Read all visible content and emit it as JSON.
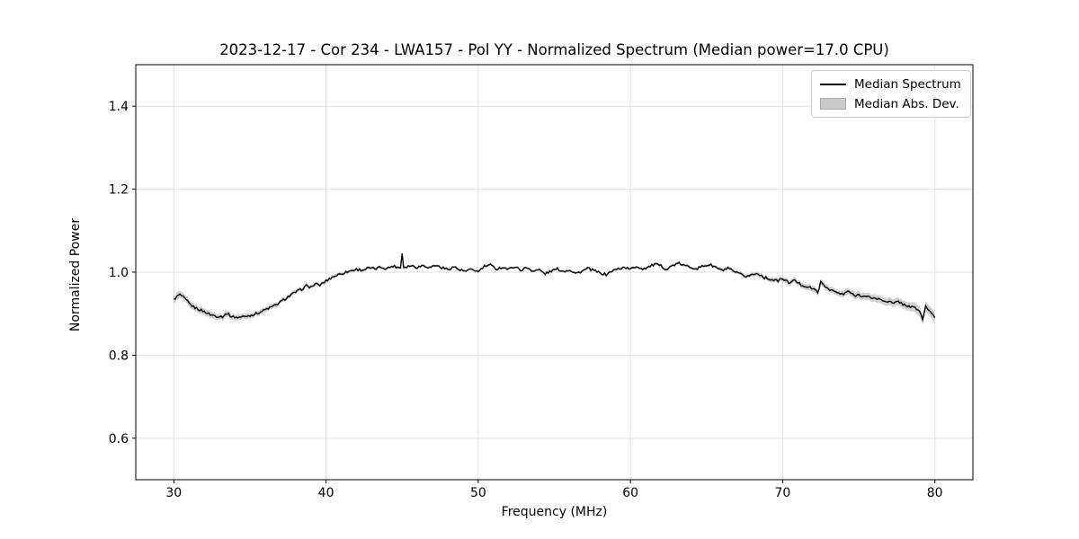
{
  "figure": {
    "title": "2023-12-17 - Cor 234 - LWA157 - Pol YY - Normalized Spectrum (Median power=17.0 CPU)"
  },
  "legend": {
    "items": [
      {
        "label": "Median Spectrum",
        "swatch": "line",
        "color": "#000000"
      },
      {
        "label": "Median Abs. Dev.",
        "swatch": "patch",
        "color": "#c9c9c9"
      }
    ]
  },
  "chart_data": {
    "type": "line",
    "title": "2023-12-17 - Cor 234 - LWA157 - Pol YY - Normalized Spectrum (Median power=17.0 CPU)",
    "xlabel": "Frequency (MHz)",
    "ylabel": "Normalized Power",
    "xlim": [
      27.5,
      82.5
    ],
    "ylim": [
      0.5,
      1.5
    ],
    "xticks": [
      30,
      40,
      50,
      60,
      70,
      80
    ],
    "yticks": [
      0.6,
      0.8,
      1.0,
      1.2,
      1.4
    ],
    "grid": true,
    "grid_color": "#e2e2e2",
    "axis_color": "#000000",
    "legend_position": "upper right",
    "noise_amplitude": 0.003,
    "sample_step_mhz": 0.1,
    "series": [
      {
        "name": "Median Spectrum",
        "render": "line",
        "color": "#000000",
        "points": [
          [
            30.0,
            0.934
          ],
          [
            30.2,
            0.941
          ],
          [
            30.4,
            0.946
          ],
          [
            30.6,
            0.94
          ],
          [
            30.8,
            0.933
          ],
          [
            31.0,
            0.925
          ],
          [
            31.3,
            0.916
          ],
          [
            31.6,
            0.911
          ],
          [
            32.0,
            0.905
          ],
          [
            32.4,
            0.898
          ],
          [
            32.8,
            0.894
          ],
          [
            33.2,
            0.893
          ],
          [
            33.5,
            0.901
          ],
          [
            33.8,
            0.893
          ],
          [
            34.2,
            0.891
          ],
          [
            34.6,
            0.893
          ],
          [
            35.0,
            0.896
          ],
          [
            35.4,
            0.9
          ],
          [
            35.8,
            0.906
          ],
          [
            36.2,
            0.913
          ],
          [
            36.5,
            0.917
          ],
          [
            36.8,
            0.923
          ],
          [
            37.2,
            0.933
          ],
          [
            37.6,
            0.943
          ],
          [
            38.0,
            0.952
          ],
          [
            38.4,
            0.959
          ],
          [
            38.7,
            0.967
          ],
          [
            39.0,
            0.964
          ],
          [
            39.3,
            0.971
          ],
          [
            39.6,
            0.969
          ],
          [
            40.0,
            0.979
          ],
          [
            40.4,
            0.988
          ],
          [
            40.8,
            0.994
          ],
          [
            41.2,
            0.999
          ],
          [
            41.6,
            1.003
          ],
          [
            42.0,
            1.007
          ],
          [
            42.4,
            1.005
          ],
          [
            42.8,
            1.01
          ],
          [
            43.2,
            1.008
          ],
          [
            43.6,
            1.012
          ],
          [
            44.0,
            1.009
          ],
          [
            44.4,
            1.015
          ],
          [
            44.8,
            1.011
          ],
          [
            44.9,
            1.012
          ],
          [
            45.0,
            1.046
          ],
          [
            45.1,
            1.012
          ],
          [
            45.6,
            1.016
          ],
          [
            46.0,
            1.012
          ],
          [
            46.4,
            1.017
          ],
          [
            46.8,
            1.011
          ],
          [
            47.2,
            1.017
          ],
          [
            47.6,
            1.011
          ],
          [
            48.0,
            1.007
          ],
          [
            48.4,
            1.013
          ],
          [
            48.8,
            1.005
          ],
          [
            49.2,
            1.002
          ],
          [
            49.6,
            1.007
          ],
          [
            50.0,
            1.001
          ],
          [
            50.4,
            1.014
          ],
          [
            50.8,
            1.017
          ],
          [
            51.2,
            1.008
          ],
          [
            51.6,
            1.012
          ],
          [
            52.0,
            1.007
          ],
          [
            52.4,
            1.014
          ],
          [
            52.8,
            1.005
          ],
          [
            53.2,
            1.011
          ],
          [
            53.6,
            1.003
          ],
          [
            54.0,
            1.006
          ],
          [
            54.4,
            0.996
          ],
          [
            54.8,
            1.003
          ],
          [
            55.2,
            1.008
          ],
          [
            55.6,
            1.002
          ],
          [
            56.0,
            1.006
          ],
          [
            56.4,
            0.997
          ],
          [
            56.8,
            1.002
          ],
          [
            57.2,
            1.009
          ],
          [
            57.6,
            1.004
          ],
          [
            58.0,
            0.998
          ],
          [
            58.4,
            0.994
          ],
          [
            58.8,
            1.003
          ],
          [
            59.2,
            1.008
          ],
          [
            59.6,
            1.012
          ],
          [
            60.0,
            1.007
          ],
          [
            60.4,
            1.014
          ],
          [
            60.8,
            1.008
          ],
          [
            61.2,
            1.013
          ],
          [
            61.6,
            1.019
          ],
          [
            62.0,
            1.015
          ],
          [
            62.4,
            1.007
          ],
          [
            62.8,
            1.017
          ],
          [
            63.2,
            1.021
          ],
          [
            63.6,
            1.015
          ],
          [
            64.0,
            1.012
          ],
          [
            64.4,
            1.009
          ],
          [
            64.8,
            1.015
          ],
          [
            65.2,
            1.018
          ],
          [
            65.6,
            1.012
          ],
          [
            66.0,
            1.004
          ],
          [
            66.4,
            1.009
          ],
          [
            66.8,
            1.001
          ],
          [
            67.2,
            0.995
          ],
          [
            67.6,
            0.99
          ],
          [
            68.0,
            0.994
          ],
          [
            68.4,
            0.997
          ],
          [
            68.8,
            0.987
          ],
          [
            69.2,
            0.983
          ],
          [
            69.6,
            0.979
          ],
          [
            70.0,
            0.984
          ],
          [
            70.4,
            0.975
          ],
          [
            70.8,
            0.98
          ],
          [
            71.2,
            0.97
          ],
          [
            71.6,
            0.965
          ],
          [
            72.0,
            0.96
          ],
          [
            72.3,
            0.952
          ],
          [
            72.5,
            0.975
          ],
          [
            72.8,
            0.965
          ],
          [
            73.2,
            0.957
          ],
          [
            73.6,
            0.95
          ],
          [
            74.0,
            0.946
          ],
          [
            74.3,
            0.955
          ],
          [
            74.7,
            0.943
          ],
          [
            75.0,
            0.946
          ],
          [
            75.4,
            0.941
          ],
          [
            75.8,
            0.939
          ],
          [
            76.2,
            0.936
          ],
          [
            76.6,
            0.932
          ],
          [
            77.0,
            0.929
          ],
          [
            77.3,
            0.924
          ],
          [
            77.6,
            0.93
          ],
          [
            78.0,
            0.921
          ],
          [
            78.4,
            0.917
          ],
          [
            78.8,
            0.912
          ],
          [
            79.0,
            0.906
          ],
          [
            79.2,
            0.886
          ],
          [
            79.4,
            0.918
          ],
          [
            79.6,
            0.909
          ],
          [
            79.8,
            0.898
          ],
          [
            80.0,
            0.892
          ]
        ]
      },
      {
        "name": "Median Abs. Dev.",
        "render": "band",
        "color": "#c9c9c9",
        "halfwidth_points": [
          [
            30,
            0.009
          ],
          [
            32,
            0.008
          ],
          [
            34,
            0.007
          ],
          [
            36,
            0.006
          ],
          [
            38,
            0.005
          ],
          [
            40,
            0.004
          ],
          [
            44,
            0.0035
          ],
          [
            48,
            0.003
          ],
          [
            52,
            0.0028
          ],
          [
            56,
            0.0028
          ],
          [
            60,
            0.003
          ],
          [
            64,
            0.0035
          ],
          [
            66,
            0.004
          ],
          [
            68,
            0.005
          ],
          [
            70,
            0.006
          ],
          [
            72,
            0.007
          ],
          [
            74,
            0.008
          ],
          [
            76,
            0.009
          ],
          [
            78,
            0.01
          ],
          [
            79,
            0.012
          ],
          [
            80,
            0.013
          ]
        ]
      }
    ]
  }
}
